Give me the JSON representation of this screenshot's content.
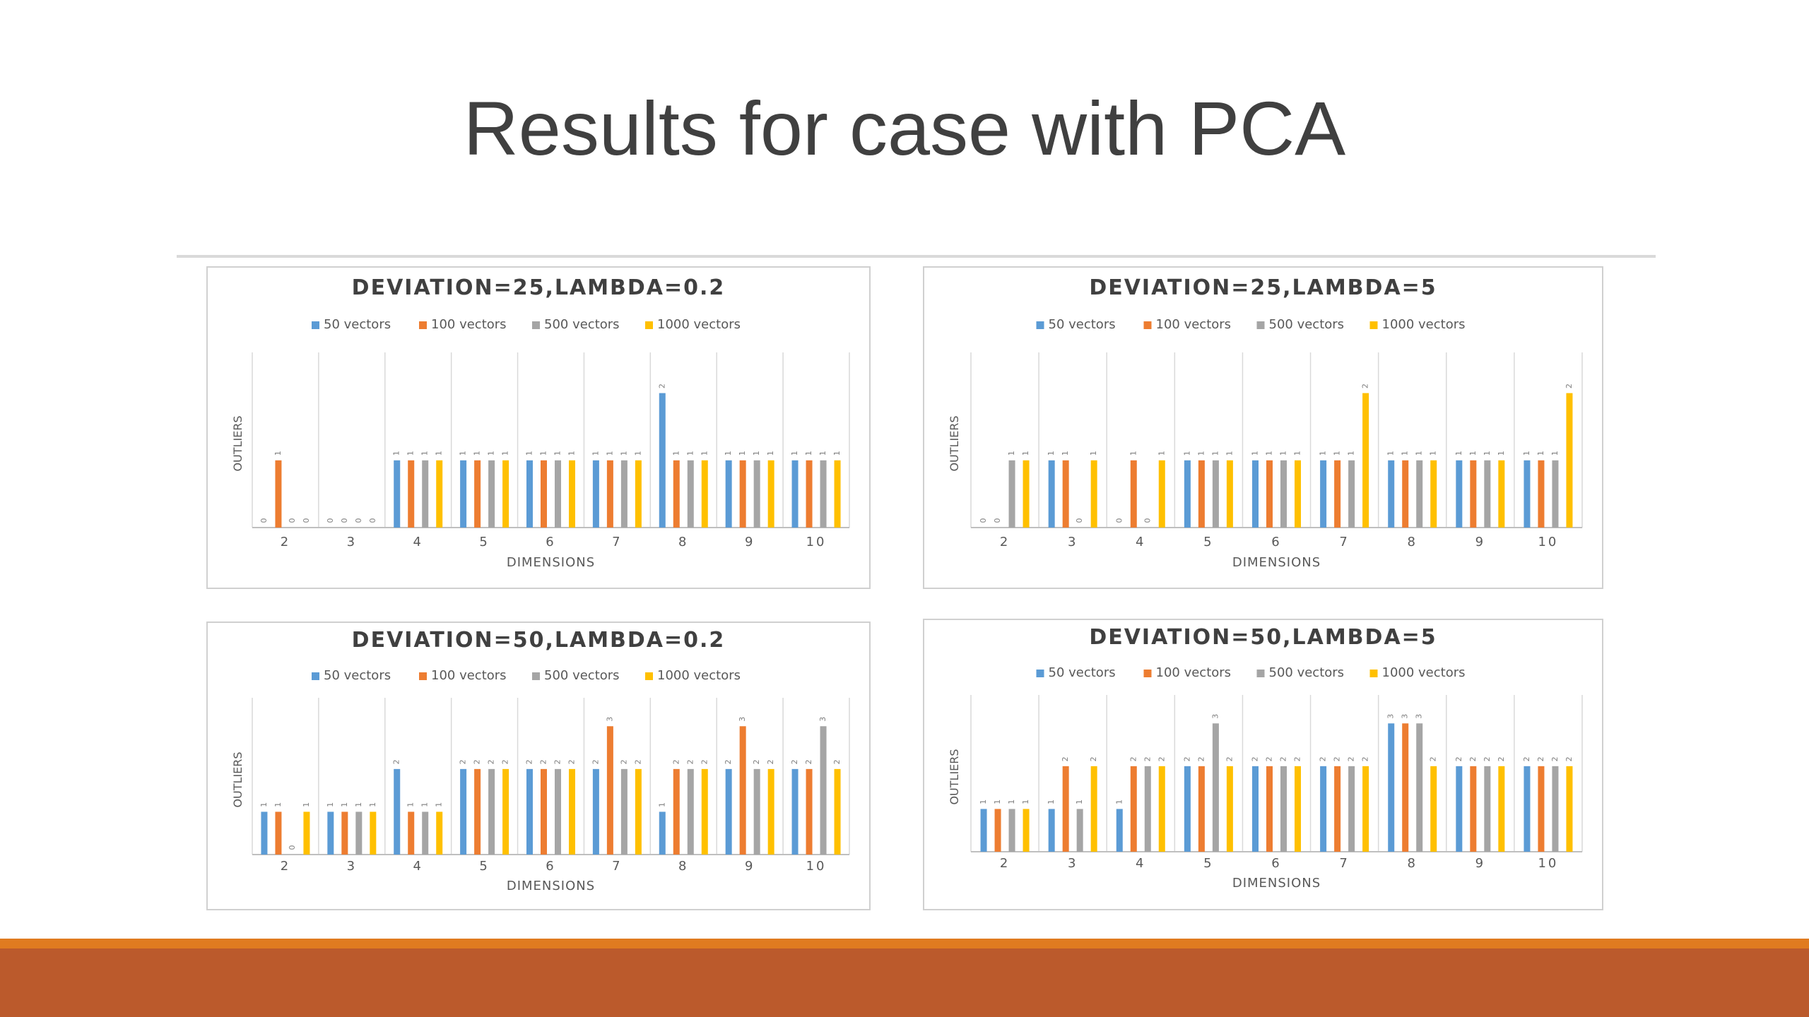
{
  "slide": {
    "title": "Results for case with PCA",
    "colors": {
      "footer_stripe": "#e07b20",
      "footer_band": "#bb5a2c"
    }
  },
  "chart_data": [
    {
      "type": "bar",
      "title": "DEVIATION=25,LAMBDA=0.2",
      "xlabel": "DIMENSIONS",
      "ylabel": "OUTLIERS",
      "categories": [
        "2",
        "3",
        "4",
        "5",
        "6",
        "7",
        "8",
        "9",
        "10"
      ],
      "ylim": [
        0,
        2.5
      ],
      "grid": "vertical category separators",
      "legend": "top",
      "series": [
        {
          "name": "50 vectors",
          "color": "#5b9bd5",
          "values": [
            0,
            0,
            1,
            1,
            1,
            1,
            2,
            1,
            1
          ]
        },
        {
          "name": "100 vectors",
          "color": "#ed7d31",
          "values": [
            1,
            0,
            1,
            1,
            1,
            1,
            1,
            1,
            1
          ]
        },
        {
          "name": "500 vectors",
          "color": "#a5a5a5",
          "values": [
            0,
            0,
            1,
            1,
            1,
            1,
            1,
            1,
            1
          ]
        },
        {
          "name": "1000 vectors",
          "color": "#ffc000",
          "values": [
            0,
            0,
            1,
            1,
            1,
            1,
            1,
            1,
            1
          ]
        }
      ]
    },
    {
      "type": "bar",
      "title": "DEVIATION=25,LAMBDA=5",
      "xlabel": "DIMENSIONS",
      "ylabel": "OUTLIERS",
      "categories": [
        "2",
        "3",
        "4",
        "5",
        "6",
        "7",
        "8",
        "9",
        "10"
      ],
      "ylim": [
        0,
        2.5
      ],
      "grid": "vertical category separators",
      "legend": "top",
      "series": [
        {
          "name": "50 vectors",
          "color": "#5b9bd5",
          "values": [
            0,
            1,
            0,
            1,
            1,
            1,
            1,
            1,
            1
          ]
        },
        {
          "name": "100 vectors",
          "color": "#ed7d31",
          "values": [
            0,
            1,
            1,
            1,
            1,
            1,
            1,
            1,
            1
          ]
        },
        {
          "name": "500 vectors",
          "color": "#a5a5a5",
          "values": [
            1,
            0,
            0,
            1,
            1,
            1,
            1,
            1,
            1
          ]
        },
        {
          "name": "1000 vectors",
          "color": "#ffc000",
          "values": [
            1,
            1,
            1,
            1,
            1,
            2,
            1,
            1,
            2
          ]
        }
      ]
    },
    {
      "type": "bar",
      "title": "DEVIATION=50,LAMBDA=0.2",
      "xlabel": "DIMENSIONS",
      "ylabel": "OUTLIERS",
      "categories": [
        "2",
        "3",
        "4",
        "5",
        "6",
        "7",
        "8",
        "9",
        "10"
      ],
      "ylim": [
        0,
        3.5
      ],
      "grid": "vertical category separators",
      "legend": "top",
      "series": [
        {
          "name": "50 vectors",
          "color": "#5b9bd5",
          "values": [
            1,
            1,
            2,
            2,
            2,
            2,
            1,
            2,
            2
          ]
        },
        {
          "name": "100 vectors",
          "color": "#ed7d31",
          "values": [
            1,
            1,
            1,
            2,
            2,
            3,
            2,
            3,
            2
          ]
        },
        {
          "name": "500 vectors",
          "color": "#a5a5a5",
          "values": [
            0,
            1,
            1,
            2,
            2,
            2,
            2,
            2,
            3
          ]
        },
        {
          "name": "1000 vectors",
          "color": "#ffc000",
          "values": [
            1,
            1,
            1,
            2,
            2,
            2,
            2,
            2,
            2
          ]
        }
      ]
    },
    {
      "type": "bar",
      "title": "DEVIATION=50,LAMBDA=5",
      "xlabel": "DIMENSIONS",
      "ylabel": "OUTLIERS",
      "categories": [
        "2",
        "3",
        "4",
        "5",
        "6",
        "7",
        "8",
        "9",
        "10"
      ],
      "ylim": [
        0,
        3.5
      ],
      "grid": "vertical category separators",
      "legend": "top",
      "series": [
        {
          "name": "50 vectors",
          "color": "#5b9bd5",
          "values": [
            1,
            1,
            1,
            2,
            2,
            2,
            3,
            2,
            2
          ]
        },
        {
          "name": "100 vectors",
          "color": "#ed7d31",
          "values": [
            1,
            2,
            2,
            2,
            2,
            2,
            3,
            2,
            2
          ]
        },
        {
          "name": "500 vectors",
          "color": "#a5a5a5",
          "values": [
            1,
            1,
            2,
            3,
            2,
            2,
            3,
            2,
            2
          ]
        },
        {
          "name": "1000 vectors",
          "color": "#ffc000",
          "values": [
            1,
            2,
            2,
            2,
            2,
            2,
            2,
            2,
            2
          ]
        }
      ]
    }
  ]
}
